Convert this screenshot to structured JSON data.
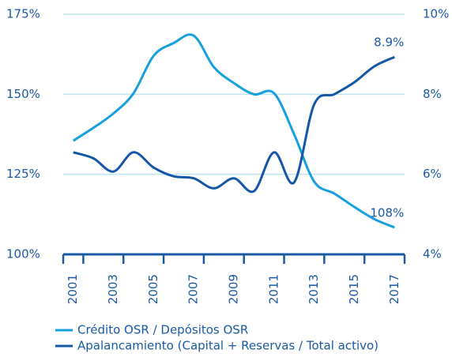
{
  "chart_data": {
    "type": "line",
    "x": [
      2001,
      2002,
      2003,
      2004,
      2005,
      2006,
      2007,
      2008,
      2009,
      2010,
      2011,
      2012,
      2013,
      2014,
      2015,
      2016,
      2017
    ],
    "xlim": [
      2000.5,
      2017.5
    ],
    "xticks": [
      2001,
      2003,
      2005,
      2007,
      2009,
      2011,
      2013,
      2015,
      2017
    ],
    "ylim": [
      100,
      175
    ],
    "yticks": [
      {
        "value": 100,
        "label": "100%"
      },
      {
        "value": 125,
        "label": "125%"
      },
      {
        "value": 150,
        "label": "150%"
      },
      {
        "value": 175,
        "label": "175%"
      }
    ],
    "y2lim": [
      4,
      10
    ],
    "y2ticks": [
      {
        "value": 4,
        "label": "4%"
      },
      {
        "value": 6,
        "label": "6%"
      },
      {
        "value": 8,
        "label": "8%"
      },
      {
        "value": 10,
        "label": "10%"
      }
    ],
    "grid": true,
    "legend": "bottom",
    "series": [
      {
        "name": "Crédito OSR / Depósitos OSR",
        "color": "#17a0dd",
        "values": [
          135.5,
          139.5,
          144,
          150.3,
          162,
          166,
          168.3,
          158.5,
          153.5,
          150,
          150.3,
          137.5,
          122.7,
          119,
          114.8,
          111,
          108.4
        ],
        "value_labels": [
          null,
          null,
          null,
          null,
          null,
          null,
          null,
          null,
          null,
          null,
          null,
          null,
          null,
          null,
          null,
          null,
          "108%"
        ]
      },
      {
        "name": "Apalancamiento (Capital + Reservas / Total activo)",
        "color": "#1457a8",
        "axis": "y2",
        "values": [
          6.55,
          6.4,
          6.07,
          6.55,
          6.17,
          5.95,
          5.9,
          5.65,
          5.9,
          5.58,
          6.55,
          5.8,
          7.75,
          8.0,
          8.3,
          8.7,
          8.93
        ],
        "value_labels": [
          null,
          null,
          null,
          null,
          null,
          null,
          null,
          null,
          null,
          null,
          null,
          null,
          null,
          null,
          null,
          null,
          "8.9%"
        ]
      }
    ]
  }
}
